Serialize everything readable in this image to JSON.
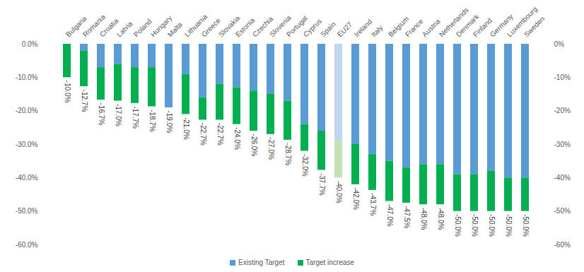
{
  "chart_data": {
    "type": "bar",
    "stacked": true,
    "grid": false,
    "legend": "bottom",
    "categories": [
      "Bulgaria",
      "Romania",
      "Croatia",
      "Latvia",
      "Poland",
      "Hungary",
      "Malta",
      "Lithuania",
      "Greece",
      "Slovakia",
      "Estonia",
      "Czechia",
      "Slovenia",
      "Portugal",
      "Cyprus",
      "Spain",
      "EU27",
      "Ireland",
      "Italy",
      "Belgium",
      "France",
      "Austria",
      "Netherlands",
      "Denmark",
      "Finland",
      "Germany",
      "Luxembourg",
      "Sweden"
    ],
    "series": [
      {
        "name": "Existing Target",
        "color": "#5B9BD5",
        "colors": [
          "#5B9BD5",
          "#5B9BD5",
          "#5B9BD5",
          "#5B9BD5",
          "#5B9BD5",
          "#5B9BD5",
          "#5B9BD5",
          "#5B9BD5",
          "#5B9BD5",
          "#5B9BD5",
          "#5B9BD5",
          "#5B9BD5",
          "#5B9BD5",
          "#5B9BD5",
          "#5B9BD5",
          "#5B9BD5",
          "#BDD7EE",
          "#5B9BD5",
          "#5B9BD5",
          "#5B9BD5",
          "#5B9BD5",
          "#5B9BD5",
          "#5B9BD5",
          "#5B9BD5",
          "#5B9BD5",
          "#5B9BD5",
          "#5B9BD5",
          "#5B9BD5"
        ],
        "values": [
          0,
          -2,
          -7,
          -6,
          -7,
          -7,
          -19,
          -9,
          -16,
          -12,
          -13,
          -14,
          -15,
          -17,
          -24,
          -26,
          -29,
          -30,
          -33,
          -35,
          -37,
          -36,
          -36,
          -39,
          -39,
          -38,
          -40,
          -40
        ]
      },
      {
        "name": "Target increase",
        "color": "#00B050",
        "colors": [
          "#00B050",
          "#00B050",
          "#00B050",
          "#00B050",
          "#00B050",
          "#00B050",
          "#00B050",
          "#00B050",
          "#00B050",
          "#00B050",
          "#00B050",
          "#00B050",
          "#00B050",
          "#00B050",
          "#00B050",
          "#00B050",
          "#C5E0B4",
          "#00B050",
          "#00B050",
          "#00B050",
          "#00B050",
          "#00B050",
          "#00B050",
          "#00B050",
          "#00B050",
          "#00B050",
          "#00B050",
          "#00B050"
        ],
        "values": [
          -10.0,
          -10.7,
          -9.7,
          -11.0,
          -10.7,
          -11.7,
          0,
          -12.0,
          -6.7,
          -10.7,
          -11.0,
          -12.0,
          -12.0,
          -11.7,
          -8.0,
          -11.7,
          -11.0,
          -12.0,
          -10.7,
          -12.0,
          -10.5,
          -12.0,
          -12.0,
          -11.0,
          -11.0,
          -12.0,
          -10.0,
          -10.0
        ]
      }
    ],
    "totals": [
      -10.0,
      -12.7,
      -16.7,
      -17.0,
      -17.7,
      -18.7,
      -19.0,
      -21.0,
      -22.7,
      -22.7,
      -24.0,
      -26.0,
      -27.0,
      -28.7,
      -32.0,
      -37.7,
      -40.0,
      -42.0,
      -43.7,
      -47.0,
      -47.5,
      -48.0,
      -48.0,
      -50.0,
      -50.0,
      -50.0,
      -50.0,
      -50.0
    ],
    "total_labels": [
      "-10.0%",
      "-12.7%",
      "-16.7%",
      "-17.0%",
      "-17.7%",
      "-18.7%",
      "-19.0%",
      "-21.0%",
      "-22.7%",
      "-22.7%",
      "-24.0%",
      "-26.0%",
      "-27.0%",
      "-28.7%",
      "-32.0%",
      "-37.7%",
      "-40.0%",
      "-42.0%",
      "-43.7%",
      "-47.0%",
      "-47.5%",
      "-48.0%",
      "-48.0%",
      "-50.0%",
      "-50.0%",
      "-50.0%",
      "-50.0%",
      "-50.0%"
    ],
    "ylim": [
      -60,
      0
    ],
    "yticks": [
      {
        "value": 0,
        "label": "0.0%"
      },
      {
        "value": -10,
        "label": "-10.0%"
      },
      {
        "value": -20,
        "label": "-20.0%"
      },
      {
        "value": -30,
        "label": "-30.0%"
      },
      {
        "value": -40,
        "label": "-40.0%"
      },
      {
        "value": -50,
        "label": "-50.0%"
      },
      {
        "value": -60,
        "label": "-60.0%"
      }
    ],
    "y2lim": [
      -60,
      0
    ],
    "y2ticks": [
      {
        "value": 0,
        "label": "0%"
      },
      {
        "value": -10,
        "label": "-10%"
      },
      {
        "value": -20,
        "label": "-20%"
      },
      {
        "value": -30,
        "label": "-30%"
      },
      {
        "value": -40,
        "label": "-40%"
      },
      {
        "value": -50,
        "label": "-50%"
      },
      {
        "value": -60,
        "label": "-60%"
      }
    ]
  }
}
